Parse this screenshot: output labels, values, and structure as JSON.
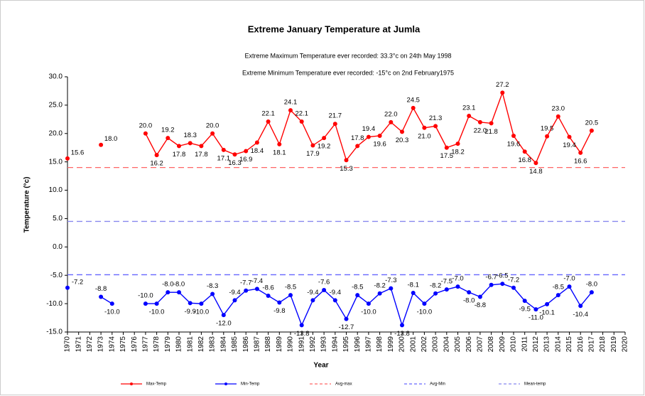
{
  "chart_data": {
    "type": "line",
    "title": "Extreme January Temperature at Jumla",
    "annotations": [
      "Extreme Maximum Temperature ever recorded: 33.3°c on 24th May 1998",
      "Extreme Minimum  Temperature ever recorded: -15°c on 2nd February1975"
    ],
    "x_label": "Year",
    "y_label": "Temperature (°c)",
    "categories": [
      "1970",
      "1971",
      "1972",
      "1973",
      "1974",
      "1975",
      "1976",
      "1977",
      "1978",
      "1979",
      "1980",
      "1981",
      "1982",
      "1983",
      "1984",
      "1985",
      "1986",
      "1987",
      "1988",
      "1989",
      "1990",
      "1991",
      "1992",
      "1993",
      "1994",
      "1995",
      "1996",
      "1997",
      "1998",
      "1999",
      "2000",
      "2001",
      "2002",
      "2003",
      "2004",
      "2005",
      "2006",
      "2007",
      "2008",
      "2009",
      "2010",
      "2011",
      "2012",
      "2013",
      "2014",
      "2015",
      "2016",
      "2017",
      "2018",
      "2019",
      "2020"
    ],
    "series": [
      {
        "name": "Max-Temp",
        "color": "#ff0000",
        "values": [
          15.6,
          null,
          null,
          18.0,
          null,
          null,
          null,
          20.0,
          16.2,
          19.2,
          17.8,
          18.3,
          17.8,
          20.0,
          17.1,
          16.3,
          16.9,
          18.4,
          22.1,
          18.1,
          24.1,
          22.1,
          17.9,
          19.2,
          21.7,
          15.3,
          17.8,
          19.4,
          19.6,
          22.0,
          20.3,
          24.5,
          21.0,
          21.3,
          17.5,
          18.2,
          23.1,
          22.0,
          21.8,
          27.2,
          19.6,
          16.8,
          14.8,
          19.5,
          23.0,
          19.4,
          16.6,
          20.5,
          null,
          null,
          null
        ],
        "value_labels": [
          "15.6",
          null,
          null,
          "18.0",
          null,
          null,
          null,
          "20.0",
          "16.2",
          "19.2",
          "17.8",
          "18.3",
          "17.8",
          "20.0",
          "17.1",
          "16.3",
          "16.9",
          "18.4",
          "22.1",
          "18.1",
          "24.1",
          "22.1",
          "17.9",
          "19.2",
          "21.7",
          "15.3",
          "17.8",
          "19.4",
          "19.6",
          "22.0",
          "20.3",
          "24.5",
          "21.0",
          "21.3",
          "17.5",
          "18.2",
          "23.1",
          "22.0",
          "21.8",
          "27.2",
          "19.6",
          "16.8",
          "14.8",
          "19.5",
          "23.0",
          "19.4",
          "16.6",
          "20.5",
          null,
          null,
          null
        ]
      },
      {
        "name": "Min-Temp",
        "color": "#0000ff",
        "values": [
          -7.2,
          null,
          null,
          -8.8,
          -10.0,
          null,
          null,
          -10.0,
          -10.0,
          -8.0,
          -8.0,
          -9.9,
          -10.0,
          -8.3,
          -12.0,
          -9.4,
          -7.7,
          -7.4,
          -8.6,
          -9.8,
          -8.5,
          -13.8,
          -9.4,
          -7.6,
          -9.4,
          -12.7,
          -8.5,
          -10.0,
          -8.2,
          -7.3,
          -13.8,
          -8.1,
          -10.0,
          -8.2,
          -7.5,
          -7.0,
          -8.0,
          -8.8,
          -6.7,
          -6.5,
          -7.2,
          -9.5,
          -11.0,
          -10.1,
          -8.5,
          -7.0,
          -10.4,
          -8.0,
          null,
          null,
          null
        ],
        "value_labels": [
          "-7.2",
          null,
          null,
          "-8.8",
          "-10.0",
          null,
          null,
          "-10.0",
          "-10.0",
          "-8.0",
          "-8.0",
          "-9.9",
          "-10.0",
          "-8.3",
          "-12.0",
          "-9.4",
          "-7.7",
          "-7.4",
          "-8.6",
          "-9.8",
          "-8.5",
          "-13.8",
          "-9.4",
          "-7.6",
          "-9.4",
          "-12.7",
          "-8.5",
          "-10.0",
          "-8.2",
          "-7.3",
          "-13.8",
          "-8.1",
          "-10.0",
          "-8.2",
          "-7.5",
          "-7.0",
          "-8.0",
          "-8.8",
          "-6.7",
          "-6.5",
          "-7.2",
          "-9.5",
          "-11.0",
          "-10.1",
          "-8.5",
          "-7.0",
          "-10.4",
          "-8.0",
          null,
          null,
          null
        ]
      }
    ],
    "reference_lines": [
      {
        "name": "Avg-max",
        "color": "#ff6666",
        "value": 14.0
      },
      {
        "name": "Avg-Min",
        "color": "#6666ff",
        "value": -4.9
      },
      {
        "name": "Mean-temp",
        "color": "#8888ee",
        "value": 4.5
      }
    ],
    "ylim": [
      -15,
      30
    ],
    "yticks": [
      {
        "value": -15,
        "label": "-15.0"
      },
      {
        "value": -10,
        "label": "-10.0"
      },
      {
        "value": -5,
        "label": "-5.0"
      },
      {
        "value": 0,
        "label": "0.0"
      },
      {
        "value": 5,
        "label": "5.0"
      },
      {
        "value": 10,
        "label": "10.0"
      },
      {
        "value": 15,
        "label": "15.0"
      },
      {
        "value": 20,
        "label": "20.0"
      },
      {
        "value": 25,
        "label": "25.0"
      },
      {
        "value": 30,
        "label": "30.0"
      }
    ]
  }
}
